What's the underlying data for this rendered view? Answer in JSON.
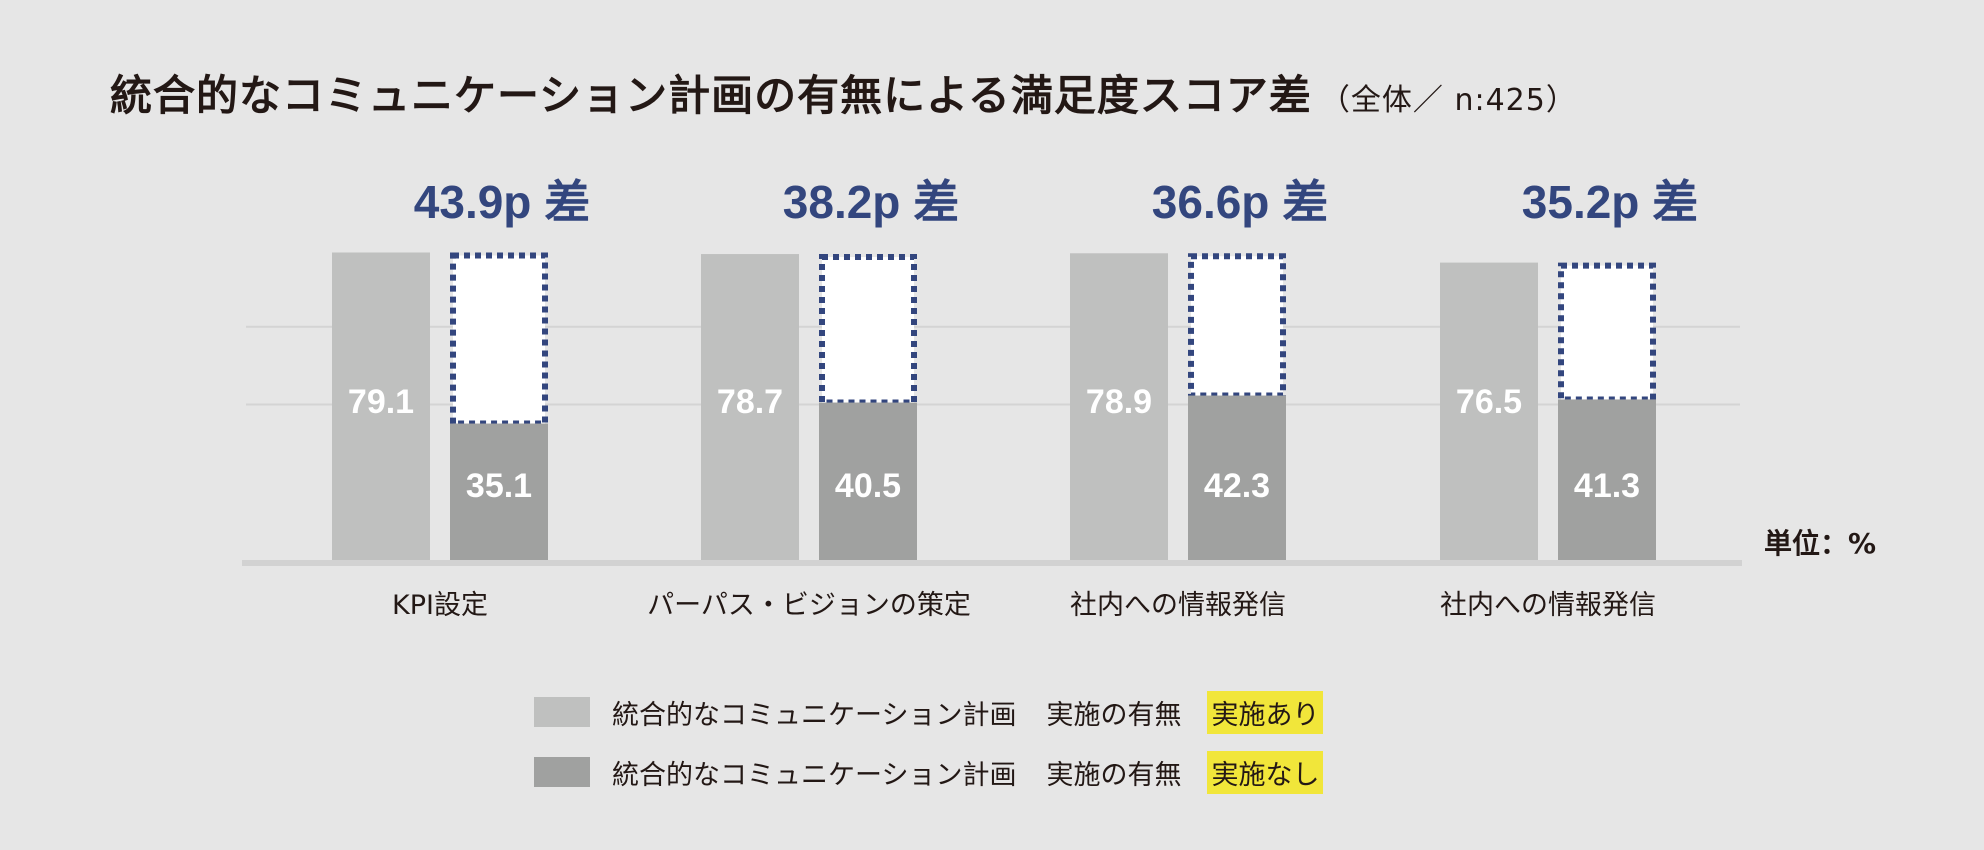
{
  "colors": {
    "background": "#e6e6e6",
    "with_plan": "#bfc0bf",
    "without_plan": "#a0a1a0",
    "diff_accent": "#33467e",
    "highlight": "#f1e63a",
    "gridline": "#d4d4d4"
  },
  "chart_data": {
    "type": "bar",
    "title": "統合的なコミュニケーション計画の有無による満足度スコア差",
    "subtitle": "（全体／ n:425）",
    "unit_label": "単位：%",
    "categories": [
      "KPI設定",
      "パーパス・ビジョンの策定",
      "社内への情報発信",
      "社内への情報発信"
    ],
    "series": [
      {
        "name": "実施あり",
        "values": [
          79.1,
          78.7,
          78.9,
          76.5
        ]
      },
      {
        "name": "実施なし",
        "values": [
          35.1,
          40.5,
          42.3,
          41.3
        ]
      }
    ],
    "differences": [
      "43.9p 差",
      "38.2p 差",
      "36.6p 差",
      "35.2p 差"
    ],
    "ylim": [
      0,
      80
    ],
    "grid": true,
    "legend_position": "bottom"
  },
  "legend": [
    {
      "prefix": "統合的なコミュニケーション計画",
      "middle": "実施の有無",
      "label": "実施あり"
    },
    {
      "prefix": "統合的なコミュニケーション計画",
      "middle": "実施の有無",
      "label": "実施なし"
    }
  ]
}
